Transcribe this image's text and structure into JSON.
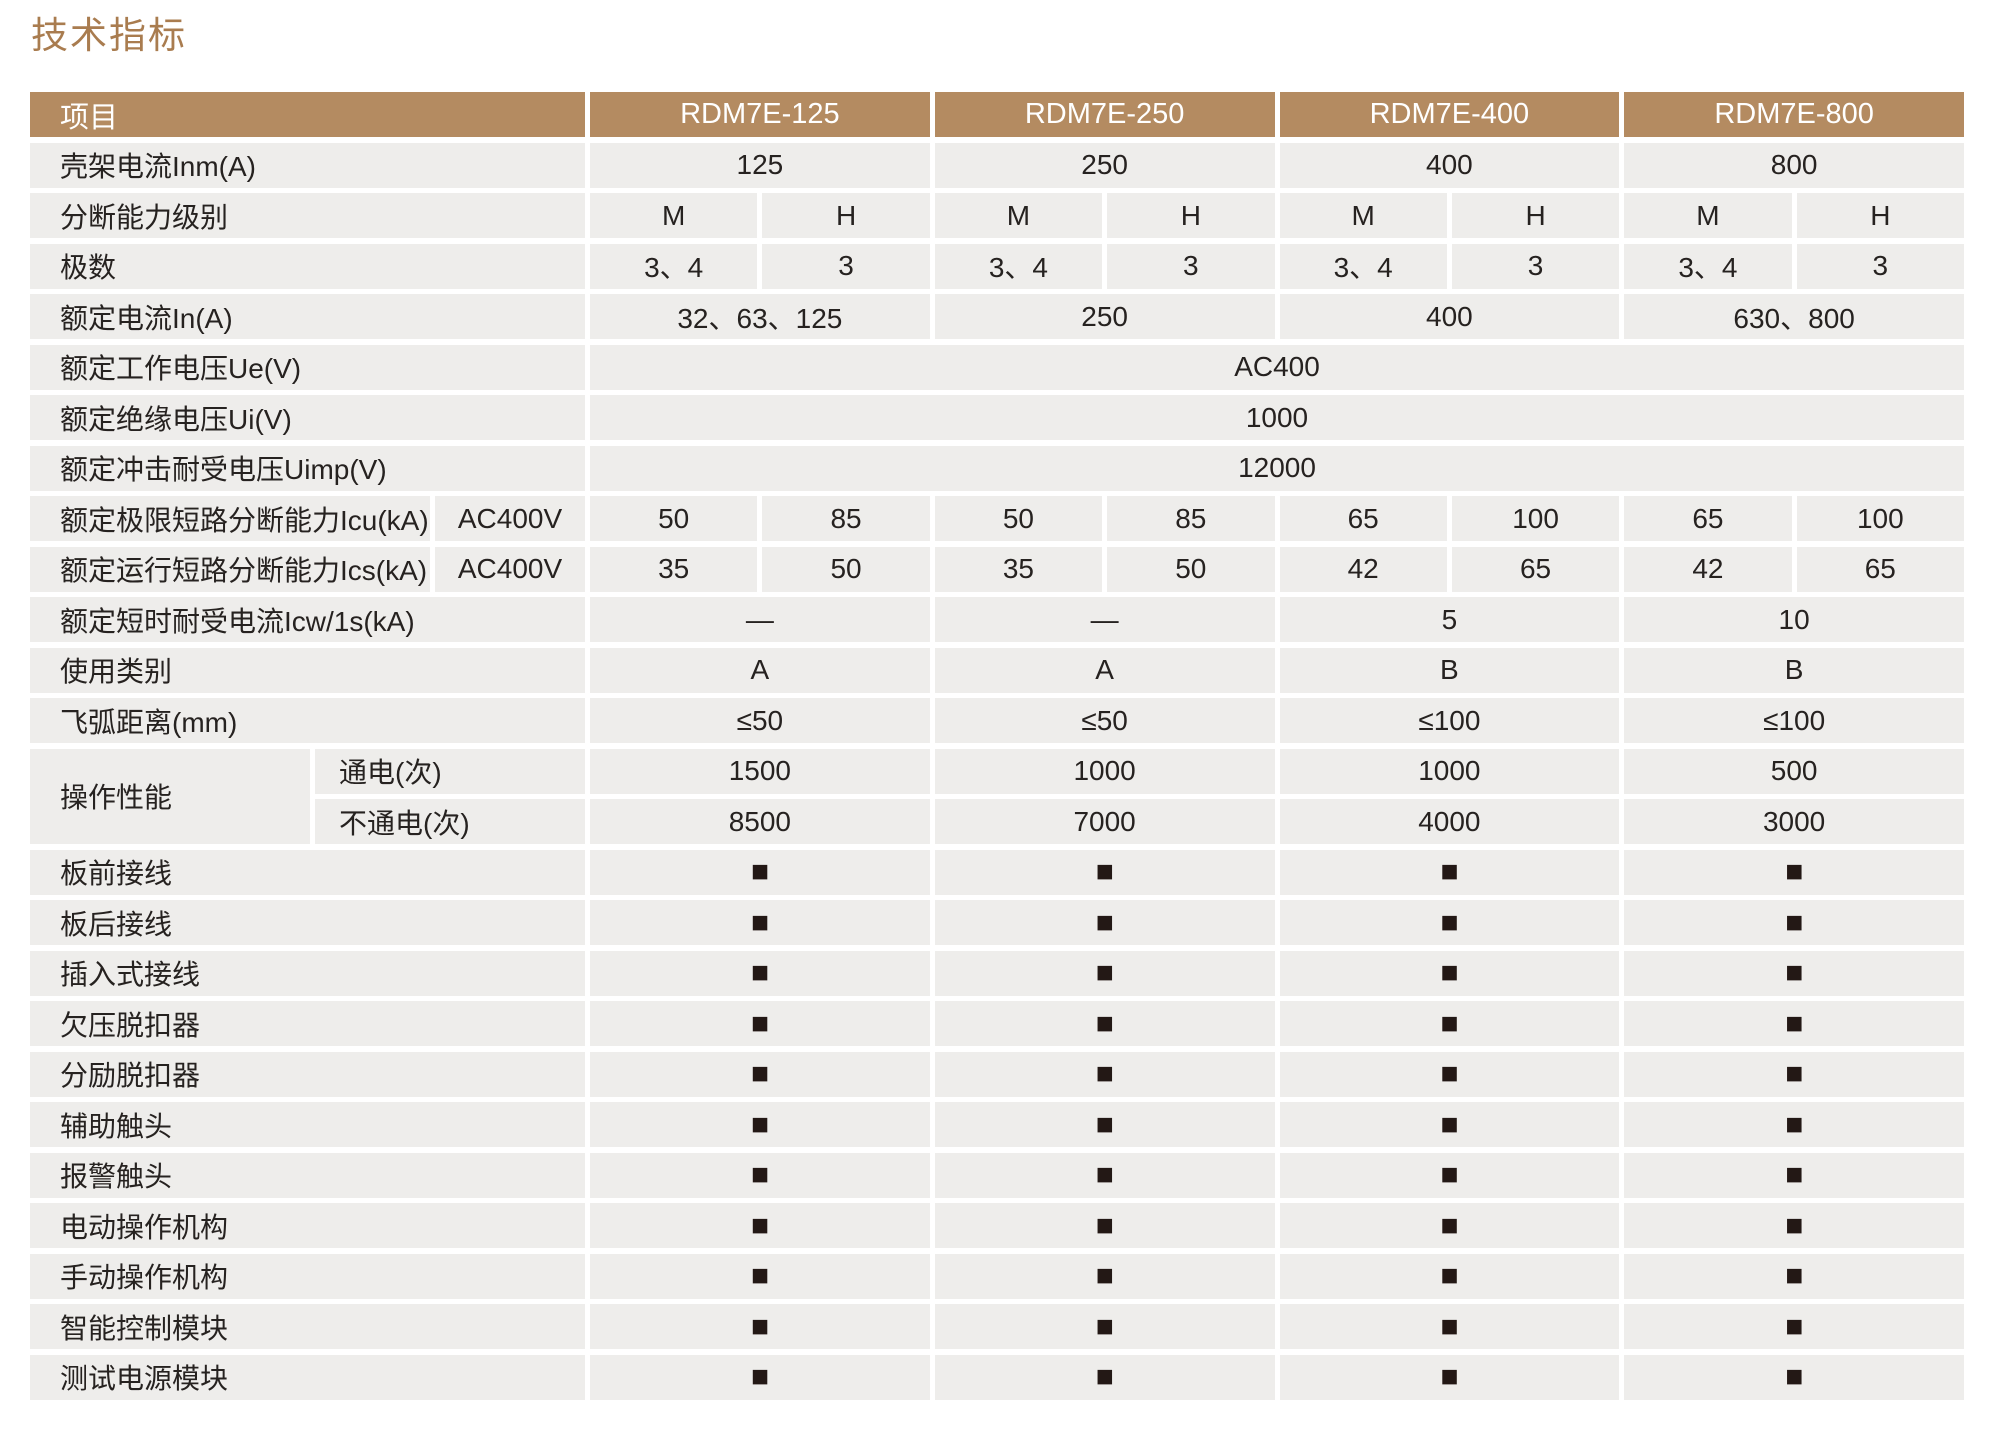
{
  "title": "技术指标",
  "colors": {
    "title_brown": "#a97c4f",
    "header_brown": "#b48b61",
    "cell_background": "#eeedeb",
    "text": "#262220",
    "marker_black": "#231815"
  },
  "table": {
    "header": {
      "item": "项目",
      "models": [
        "RDM7E-125",
        "RDM7E-250",
        "RDM7E-400",
        "RDM7E-800"
      ]
    },
    "frame_current": {
      "label": "壳架电流Inm(A)",
      "values": [
        "125",
        "250",
        "400",
        "800"
      ]
    },
    "breaking_level": {
      "label": "分断能力级别",
      "values": [
        "M",
        "H",
        "M",
        "H",
        "M",
        "H",
        "M",
        "H"
      ]
    },
    "poles": {
      "label": "极数",
      "values": [
        "3、4",
        "3",
        "3、4",
        "3",
        "3、4",
        "3",
        "3、4",
        "3"
      ]
    },
    "rated_current": {
      "label": "额定电流In(A)",
      "values": [
        "32、63、125",
        "250",
        "400",
        "630、800"
      ]
    },
    "rated_working_voltage": {
      "label": "额定工作电压Ue(V)",
      "value": "AC400"
    },
    "rated_insulation_voltage": {
      "label": "额定绝缘电压Ui(V)",
      "value": "1000"
    },
    "rated_impulse_voltage": {
      "label": "额定冲击耐受电压Uimp(V)",
      "value": "12000"
    },
    "icu": {
      "label": "额定极限短路分断能力Icu(kA)",
      "condition": "AC400V",
      "values": [
        "50",
        "85",
        "50",
        "85",
        "65",
        "100",
        "65",
        "100"
      ]
    },
    "ics": {
      "label": "额定运行短路分断能力Ics(kA)",
      "condition": "AC400V",
      "values": [
        "35",
        "50",
        "35",
        "50",
        "42",
        "65",
        "42",
        "65"
      ]
    },
    "icw": {
      "label": "额定短时耐受电流Icw/1s(kA)",
      "values": [
        "—",
        "—",
        "5",
        "10"
      ]
    },
    "usage_category": {
      "label": "使用类别",
      "values": [
        "A",
        "A",
        "B",
        "B"
      ]
    },
    "arc_distance": {
      "label": "飞弧距离(mm)",
      "values": [
        "≤50",
        "≤50",
        "≤100",
        "≤100"
      ]
    },
    "operation": {
      "label": "操作性能",
      "rows": [
        {
          "label": "通电(次)",
          "values": [
            "1500",
            "1000",
            "1000",
            "500"
          ]
        },
        {
          "label": "不通电(次)",
          "values": [
            "8500",
            "7000",
            "4000",
            "3000"
          ]
        }
      ]
    },
    "features": {
      "marker": "■",
      "items": [
        "板前接线",
        "板后接线",
        "插入式接线",
        "欠压脱扣器",
        "分励脱扣器",
        "辅助触头",
        "报警触头",
        "电动操作机构",
        "手动操作机构",
        "智能控制模块",
        "测试电源模块"
      ]
    }
  }
}
